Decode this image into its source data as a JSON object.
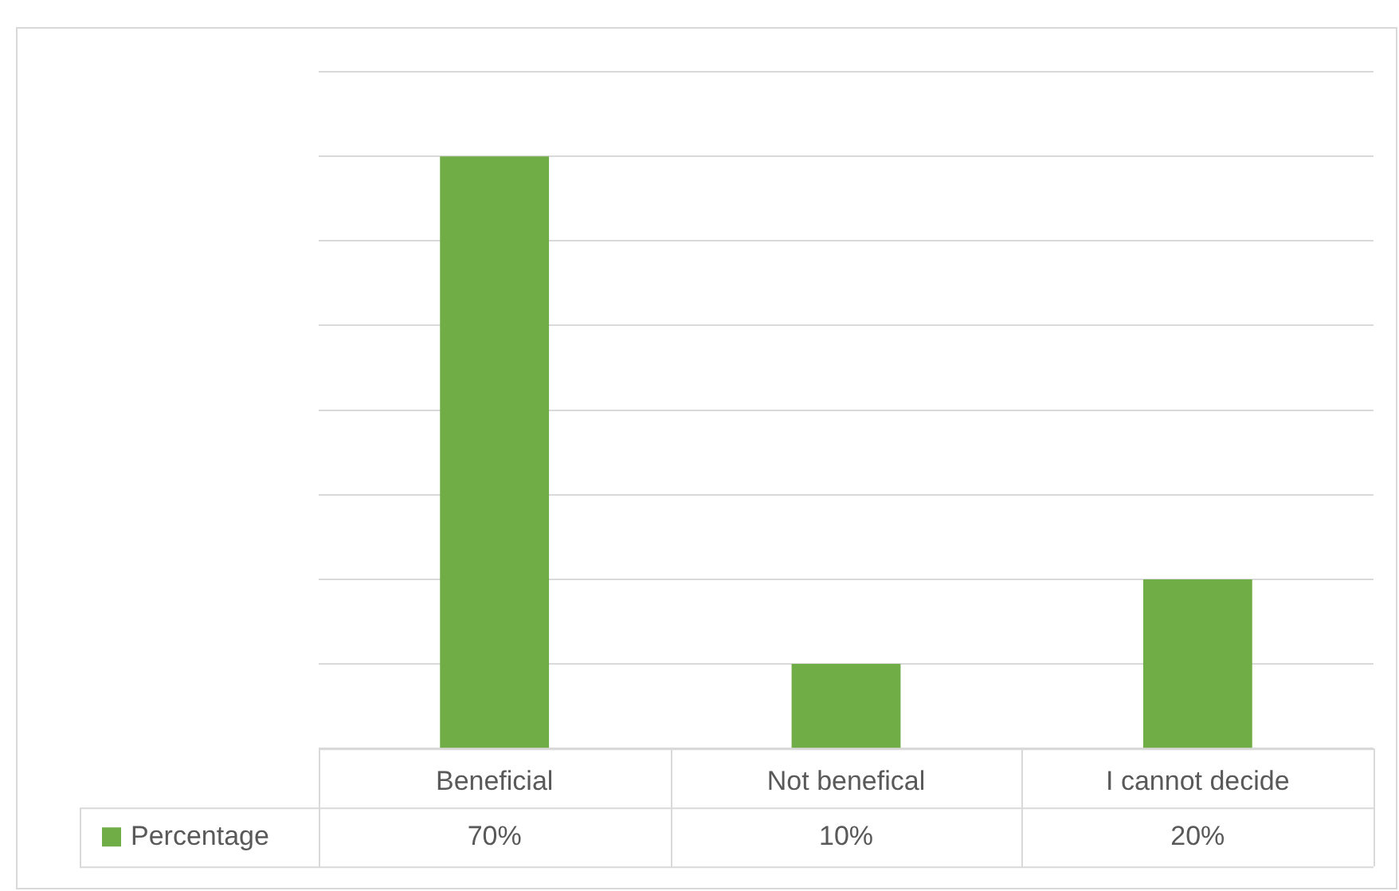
{
  "chart_data": {
    "type": "bar",
    "categories": [
      "Beneficial",
      "Not benefical",
      "I cannot decide"
    ],
    "series": [
      {
        "name": "Percentage",
        "color": "#70ad47",
        "values": [
          70,
          10,
          20
        ],
        "value_labels": [
          "70%",
          "10%",
          "20%"
        ]
      }
    ],
    "ylim": [
      0,
      80
    ],
    "yticks": [
      {
        "value": 0,
        "label": null
      },
      {
        "value": 10,
        "label": null
      },
      {
        "value": 20,
        "label": null
      },
      {
        "value": 30,
        "label": null
      },
      {
        "value": 40,
        "label": null
      },
      {
        "value": 50,
        "label": null
      },
      {
        "value": 60,
        "label": null
      },
      {
        "value": 70,
        "label": null
      },
      {
        "value": 80,
        "label": null
      }
    ],
    "grid": "y",
    "tick_labels": "x",
    "legend": "bottom"
  }
}
